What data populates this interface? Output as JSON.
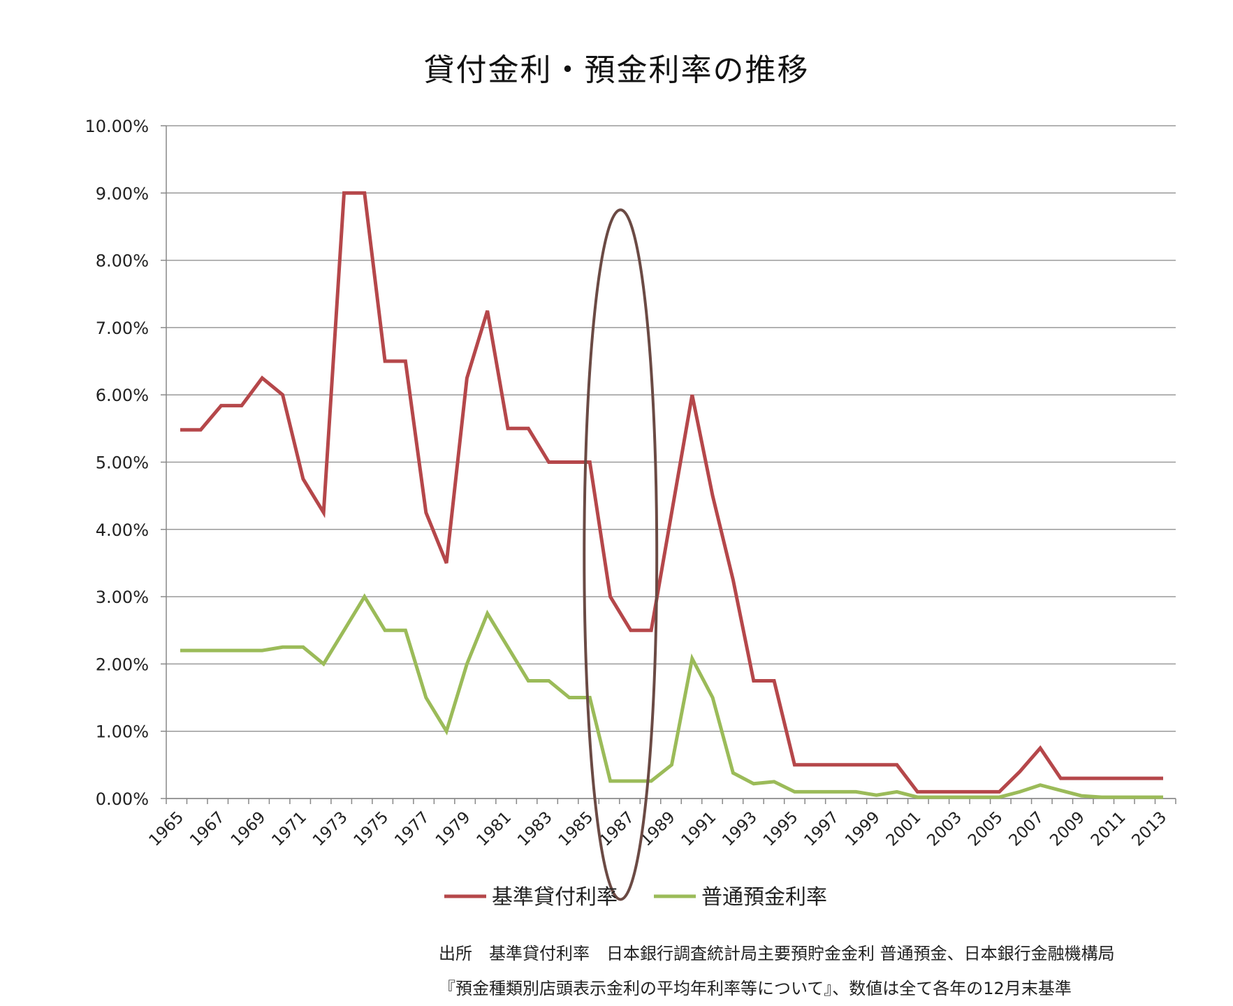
{
  "chart_data": {
    "type": "line",
    "title": "貸付金利・預金利率の推移",
    "xlabel": "",
    "ylabel": "",
    "x": [
      1965,
      1966,
      1967,
      1968,
      1969,
      1970,
      1971,
      1972,
      1973,
      1974,
      1975,
      1976,
      1977,
      1978,
      1979,
      1980,
      1981,
      1982,
      1983,
      1984,
      1985,
      1986,
      1987,
      1988,
      1989,
      1990,
      1991,
      1992,
      1993,
      1994,
      1995,
      1996,
      1997,
      1998,
      1999,
      2000,
      2001,
      2002,
      2003,
      2004,
      2005,
      2006,
      2007,
      2008,
      2009,
      2010,
      2011,
      2012,
      2013
    ],
    "x_tick_labels": [
      "1965",
      "1967",
      "1969",
      "1971",
      "1973",
      "1975",
      "1977",
      "1979",
      "1981",
      "1983",
      "1985",
      "1987",
      "1989",
      "1991",
      "1993",
      "1995",
      "1997",
      "1999",
      "2001",
      "2003",
      "2005",
      "2007",
      "2009",
      "2011",
      "2013"
    ],
    "y_tick_labels": [
      "0.00%",
      "1.00%",
      "2.00%",
      "3.00%",
      "4.00%",
      "5.00%",
      "6.00%",
      "7.00%",
      "8.00%",
      "9.00%",
      "10.00%"
    ],
    "ylim": [
      0,
      10
    ],
    "grid": true,
    "legend_position": "bottom",
    "series": [
      {
        "name": "基準貸付利率",
        "color": "#b5474a",
        "values": [
          5.48,
          5.48,
          5.84,
          5.84,
          6.25,
          6.0,
          4.75,
          4.25,
          9.0,
          9.0,
          6.5,
          6.5,
          4.25,
          3.5,
          6.25,
          7.25,
          5.5,
          5.5,
          5.0,
          5.0,
          5.0,
          3.0,
          2.5,
          2.5,
          4.25,
          6.0,
          4.5,
          3.25,
          1.75,
          1.75,
          0.5,
          0.5,
          0.5,
          0.5,
          0.5,
          0.5,
          0.1,
          0.1,
          0.1,
          0.1,
          0.1,
          0.4,
          0.75,
          0.3,
          0.3,
          0.3,
          0.3,
          0.3,
          0.3
        ]
      },
      {
        "name": "普通預金利率",
        "color": "#9bbb59",
        "values": [
          2.2,
          2.2,
          2.2,
          2.2,
          2.2,
          2.25,
          2.25,
          2.0,
          2.5,
          3.0,
          2.5,
          2.5,
          1.5,
          1.0,
          2.0,
          2.75,
          2.25,
          1.75,
          1.75,
          1.5,
          1.5,
          0.26,
          0.26,
          0.26,
          0.5,
          2.08,
          1.5,
          0.38,
          0.22,
          0.25,
          0.1,
          0.1,
          0.1,
          0.1,
          0.05,
          0.1,
          0.02,
          0.02,
          0.02,
          0.02,
          0.02,
          0.1,
          0.2,
          0.12,
          0.04,
          0.02,
          0.02,
          0.02,
          0.02
        ]
      }
    ],
    "annotation": {
      "type": "ellipse-highlight",
      "x_range": [
        1985,
        1988
      ],
      "y_range": [
        -1.5,
        8.75
      ],
      "color": "#6b4a44"
    },
    "axis_color": "#888888",
    "grid_color": "#9a9a9a"
  },
  "source": {
    "line1": "出所　基準貸付利率　日本銀行調査統計局主要預貯金金利 普通預金、日本銀行金融機構局",
    "line2": "『預金種類別店頭表示金利の平均年利率等について』、数値は全て各年の12月末基準"
  }
}
